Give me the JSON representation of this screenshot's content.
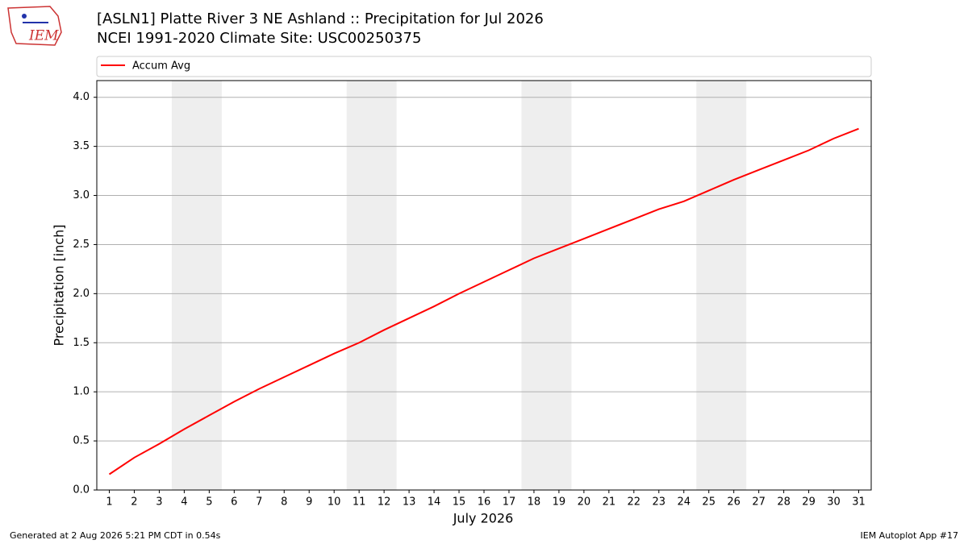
{
  "logo": {
    "text": "IEM"
  },
  "chart_data": {
    "type": "line",
    "title": "[ASLN1] Platte River 3 NE Ashland :: Precipitation for Jul 2026",
    "subtitle": "NCEI 1991-2020 Climate Site: USC00250375",
    "xlabel": "July 2026",
    "ylabel": "Precipitation [inch]",
    "x": [
      1,
      2,
      3,
      4,
      5,
      6,
      7,
      8,
      9,
      10,
      11,
      12,
      13,
      14,
      15,
      16,
      17,
      18,
      19,
      20,
      21,
      22,
      23,
      24,
      25,
      26,
      27,
      28,
      29,
      30,
      31
    ],
    "series": [
      {
        "name": "Accum Avg",
        "color": "#ff0000",
        "values": [
          0.16,
          0.33,
          0.47,
          0.62,
          0.76,
          0.9,
          1.03,
          1.15,
          1.27,
          1.39,
          1.5,
          1.63,
          1.75,
          1.87,
          2.0,
          2.12,
          2.24,
          2.36,
          2.46,
          2.56,
          2.66,
          2.76,
          2.86,
          2.94,
          3.05,
          3.16,
          3.26,
          3.36,
          3.46,
          3.58,
          3.68
        ]
      }
    ],
    "xlim": [
      0.5,
      31.5
    ],
    "ylim": [
      0,
      4.17
    ],
    "xticks": [
      1,
      2,
      3,
      4,
      5,
      6,
      7,
      8,
      9,
      10,
      11,
      12,
      13,
      14,
      15,
      16,
      17,
      18,
      19,
      20,
      21,
      22,
      23,
      24,
      25,
      26,
      27,
      28,
      29,
      30,
      31
    ],
    "yticks": [
      {
        "value": 0,
        "label": "0.0"
      },
      {
        "value": 0.5,
        "label": "0.5"
      },
      {
        "value": 1,
        "label": "1.0"
      },
      {
        "value": 1.5,
        "label": "1.5"
      },
      {
        "value": 2,
        "label": "2.0"
      },
      {
        "value": 2.5,
        "label": "2.5"
      },
      {
        "value": 3,
        "label": "3.0"
      },
      {
        "value": 3.5,
        "label": "3.5"
      },
      {
        "value": 4,
        "label": "4.0"
      }
    ],
    "shaded_spans": [
      [
        3.5,
        5.5
      ],
      [
        10.5,
        12.5
      ],
      [
        17.5,
        19.5
      ],
      [
        24.5,
        26.5
      ]
    ],
    "shade_color": "#eeeeee",
    "grid": true,
    "legend": "top"
  },
  "footer": {
    "left": "Generated at 2 Aug 2026 5:21 PM CDT in 0.54s",
    "right": "IEM Autoplot App #17"
  }
}
